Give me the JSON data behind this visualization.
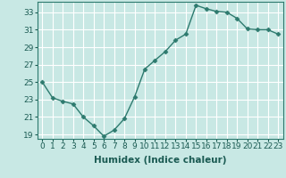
{
  "x": [
    0,
    1,
    2,
    3,
    4,
    5,
    6,
    7,
    8,
    9,
    10,
    11,
    12,
    13,
    14,
    15,
    16,
    17,
    18,
    19,
    20,
    21,
    22,
    23
  ],
  "y": [
    25.0,
    23.2,
    22.8,
    22.5,
    21.0,
    20.0,
    18.8,
    19.5,
    20.8,
    23.3,
    26.5,
    27.5,
    28.5,
    29.8,
    30.5,
    33.8,
    33.4,
    33.1,
    33.0,
    32.3,
    31.1,
    31.0,
    31.0,
    30.5
  ],
  "line_color": "#2d7a6e",
  "bg_color": "#c8e8e4",
  "grid_color": "#ffffff",
  "xlabel": "Humidex (Indice chaleur)",
  "ylim": [
    18.5,
    34.2
  ],
  "yticks": [
    19,
    21,
    23,
    25,
    27,
    29,
    31,
    33
  ],
  "xticks": [
    0,
    1,
    2,
    3,
    4,
    5,
    6,
    7,
    8,
    9,
    10,
    11,
    12,
    13,
    14,
    15,
    16,
    17,
    18,
    19,
    20,
    21,
    22,
    23
  ],
  "xlabel_fontsize": 7.5,
  "tick_fontsize": 6.5,
  "marker": "D",
  "marker_size": 2.5,
  "line_width": 1.0
}
